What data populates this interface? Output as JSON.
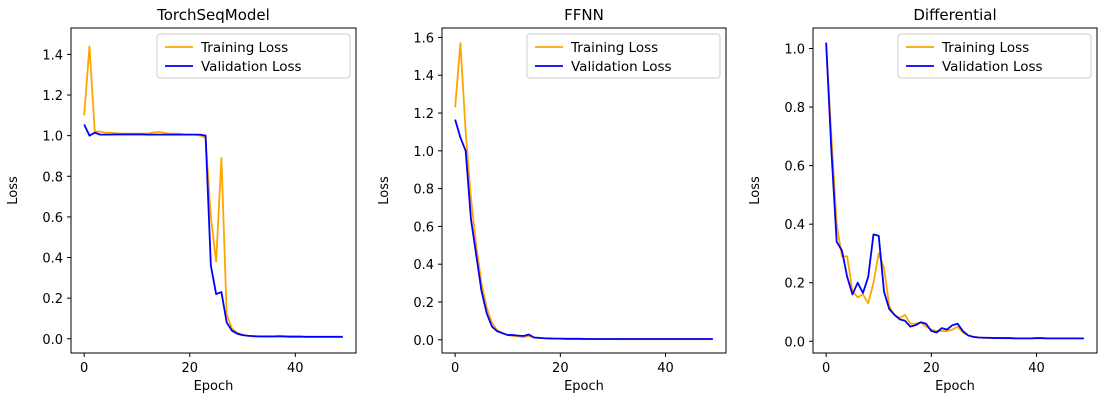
{
  "chart_data": [
    {
      "type": "line",
      "title": "TorchSeqModel",
      "xlabel": "Epoch",
      "ylabel": "Loss",
      "xlim": [
        -2.5,
        51.5
      ],
      "ylim": [
        -0.07,
        1.53
      ],
      "xticks": [
        0,
        20,
        40
      ],
      "yticks": [
        0.0,
        0.2,
        0.4,
        0.6,
        0.8,
        1.0,
        1.2,
        1.4
      ],
      "ytick_labels": [
        "0.0",
        "0.2",
        "0.4",
        "0.6",
        "0.8",
        "1.0",
        "1.2",
        "1.4"
      ],
      "legend_position": "top-right",
      "series": [
        {
          "name": "Training Loss",
          "color": "#FFA500",
          "x": [
            0,
            1,
            2,
            3,
            4,
            5,
            6,
            7,
            8,
            9,
            10,
            11,
            12,
            13,
            14,
            15,
            16,
            17,
            18,
            19,
            20,
            21,
            22,
            23,
            24,
            25,
            26,
            27,
            28,
            29,
            30,
            31,
            32,
            33,
            34,
            35,
            36,
            37,
            38,
            39,
            40,
            41,
            42,
            43,
            44,
            45,
            46,
            47,
            48,
            49
          ],
          "values": [
            1.1,
            1.44,
            1.02,
            1.02,
            1.015,
            1.015,
            1.012,
            1.01,
            1.01,
            1.01,
            1.01,
            1.01,
            1.01,
            1.015,
            1.018,
            1.015,
            1.01,
            1.01,
            1.01,
            1.005,
            1.005,
            1.005,
            1.0,
            0.99,
            0.6,
            0.38,
            0.89,
            0.12,
            0.05,
            0.03,
            0.02,
            0.015,
            0.012,
            0.011,
            0.01,
            0.01,
            0.01,
            0.01,
            0.01,
            0.009,
            0.009,
            0.009,
            0.008,
            0.008,
            0.008,
            0.008,
            0.008,
            0.008,
            0.008,
            0.008
          ]
        },
        {
          "name": "Validation Loss",
          "color": "#0000FF",
          "x": [
            0,
            1,
            2,
            3,
            4,
            5,
            6,
            7,
            8,
            9,
            10,
            11,
            12,
            13,
            14,
            15,
            16,
            17,
            18,
            19,
            20,
            21,
            22,
            23,
            24,
            25,
            26,
            27,
            28,
            29,
            30,
            31,
            32,
            33,
            34,
            35,
            36,
            37,
            38,
            39,
            40,
            41,
            42,
            43,
            44,
            45,
            46,
            47,
            48,
            49
          ],
          "values": [
            1.055,
            1.0,
            1.015,
            1.005,
            1.005,
            1.005,
            1.006,
            1.006,
            1.006,
            1.006,
            1.006,
            1.006,
            1.005,
            1.005,
            1.005,
            1.005,
            1.005,
            1.005,
            1.005,
            1.005,
            1.005,
            1.005,
            1.005,
            1.0,
            0.36,
            0.22,
            0.23,
            0.08,
            0.04,
            0.025,
            0.018,
            0.015,
            0.013,
            0.012,
            0.012,
            0.012,
            0.012,
            0.013,
            0.012,
            0.011,
            0.011,
            0.011,
            0.01,
            0.01,
            0.01,
            0.01,
            0.01,
            0.01,
            0.01,
            0.01
          ]
        }
      ]
    },
    {
      "type": "line",
      "title": "FFNN",
      "xlabel": "Epoch",
      "ylabel": "Loss",
      "xlim": [
        -2.5,
        51.5
      ],
      "ylim": [
        -0.07,
        1.65
      ],
      "xticks": [
        0,
        20,
        40
      ],
      "yticks": [
        0.0,
        0.2,
        0.4,
        0.6,
        0.8,
        1.0,
        1.2,
        1.4,
        1.6
      ],
      "ytick_labels": [
        "0.0",
        "0.2",
        "0.4",
        "0.6",
        "0.8",
        "1.0",
        "1.2",
        "1.4",
        "1.6"
      ],
      "legend_position": "top-right",
      "series": [
        {
          "name": "Training Loss",
          "color": "#FFA500",
          "x": [
            0,
            1,
            2,
            3,
            4,
            5,
            6,
            7,
            8,
            9,
            10,
            11,
            12,
            13,
            14,
            15,
            16,
            17,
            18,
            19,
            20,
            21,
            22,
            23,
            24,
            25,
            26,
            27,
            28,
            29,
            30,
            31,
            32,
            33,
            34,
            35,
            36,
            37,
            38,
            39,
            40,
            41,
            42,
            43,
            44,
            45,
            46,
            47,
            48,
            49
          ],
          "values": [
            1.23,
            1.57,
            1.1,
            0.75,
            0.5,
            0.3,
            0.17,
            0.09,
            0.05,
            0.035,
            0.025,
            0.02,
            0.018,
            0.015,
            0.02,
            0.012,
            0.01,
            0.008,
            0.007,
            0.006,
            0.006,
            0.005,
            0.005,
            0.005,
            0.004,
            0.004,
            0.004,
            0.004,
            0.004,
            0.004,
            0.004,
            0.003,
            0.003,
            0.003,
            0.003,
            0.003,
            0.003,
            0.003,
            0.003,
            0.003,
            0.003,
            0.003,
            0.003,
            0.003,
            0.003,
            0.003,
            0.003,
            0.003,
            0.003,
            0.003
          ]
        },
        {
          "name": "Validation Loss",
          "color": "#0000FF",
          "x": [
            0,
            1,
            2,
            3,
            4,
            5,
            6,
            7,
            8,
            9,
            10,
            11,
            12,
            13,
            14,
            15,
            16,
            17,
            18,
            19,
            20,
            21,
            22,
            23,
            24,
            25,
            26,
            27,
            28,
            29,
            30,
            31,
            32,
            33,
            34,
            35,
            36,
            37,
            38,
            39,
            40,
            41,
            42,
            43,
            44,
            45,
            46,
            47,
            48,
            49
          ],
          "values": [
            1.165,
            1.07,
            1.0,
            0.64,
            0.45,
            0.26,
            0.14,
            0.07,
            0.045,
            0.035,
            0.025,
            0.025,
            0.022,
            0.02,
            0.028,
            0.012,
            0.01,
            0.008,
            0.007,
            0.006,
            0.006,
            0.005,
            0.005,
            0.005,
            0.005,
            0.004,
            0.004,
            0.004,
            0.004,
            0.004,
            0.004,
            0.004,
            0.004,
            0.004,
            0.004,
            0.004,
            0.004,
            0.004,
            0.004,
            0.004,
            0.004,
            0.004,
            0.004,
            0.004,
            0.004,
            0.004,
            0.004,
            0.004,
            0.004,
            0.004
          ]
        }
      ]
    },
    {
      "type": "line",
      "title": "Differential",
      "xlabel": "Epoch",
      "ylabel": "Loss",
      "xlim": [
        -2.5,
        51.5
      ],
      "ylim": [
        -0.04,
        1.07
      ],
      "xticks": [
        0,
        20,
        40
      ],
      "yticks": [
        0.0,
        0.2,
        0.4,
        0.6,
        0.8,
        1.0
      ],
      "ytick_labels": [
        "0.0",
        "0.2",
        "0.4",
        "0.6",
        "0.8",
        "1.0"
      ],
      "legend_position": "top-right",
      "series": [
        {
          "name": "Training Loss",
          "color": "#FFA500",
          "x": [
            0,
            1,
            2,
            3,
            4,
            5,
            6,
            7,
            8,
            9,
            10,
            11,
            12,
            13,
            14,
            15,
            16,
            17,
            18,
            19,
            20,
            21,
            22,
            23,
            24,
            25,
            26,
            27,
            28,
            29,
            30,
            31,
            32,
            33,
            34,
            35,
            36,
            37,
            38,
            39,
            40,
            41,
            42,
            43,
            44,
            45,
            46,
            47,
            48,
            49
          ],
          "values": [
            1.01,
            0.7,
            0.4,
            0.29,
            0.29,
            0.17,
            0.15,
            0.16,
            0.13,
            0.2,
            0.3,
            0.25,
            0.12,
            0.09,
            0.08,
            0.09,
            0.06,
            0.06,
            0.065,
            0.05,
            0.04,
            0.035,
            0.035,
            0.035,
            0.04,
            0.05,
            0.03,
            0.02,
            0.015,
            0.013,
            0.012,
            0.011,
            0.011,
            0.011,
            0.01,
            0.01,
            0.01,
            0.01,
            0.01,
            0.01,
            0.01,
            0.01,
            0.01,
            0.01,
            0.01,
            0.01,
            0.01,
            0.01,
            0.01,
            0.01
          ]
        },
        {
          "name": "Validation Loss",
          "color": "#0000FF",
          "x": [
            0,
            1,
            2,
            3,
            4,
            5,
            6,
            7,
            8,
            9,
            10,
            11,
            12,
            13,
            14,
            15,
            16,
            17,
            18,
            19,
            20,
            21,
            22,
            23,
            24,
            25,
            26,
            27,
            28,
            29,
            30,
            31,
            32,
            33,
            34,
            35,
            36,
            37,
            38,
            39,
            40,
            41,
            42,
            43,
            44,
            45,
            46,
            47,
            48,
            49
          ],
          "values": [
            1.02,
            0.65,
            0.34,
            0.31,
            0.22,
            0.16,
            0.2,
            0.165,
            0.22,
            0.365,
            0.36,
            0.17,
            0.11,
            0.09,
            0.075,
            0.07,
            0.05,
            0.055,
            0.065,
            0.06,
            0.035,
            0.03,
            0.045,
            0.04,
            0.055,
            0.06,
            0.035,
            0.02,
            0.015,
            0.013,
            0.012,
            0.012,
            0.011,
            0.011,
            0.011,
            0.011,
            0.01,
            0.01,
            0.01,
            0.01,
            0.011,
            0.011,
            0.01,
            0.01,
            0.01,
            0.01,
            0.01,
            0.01,
            0.01,
            0.01
          ]
        }
      ]
    }
  ]
}
